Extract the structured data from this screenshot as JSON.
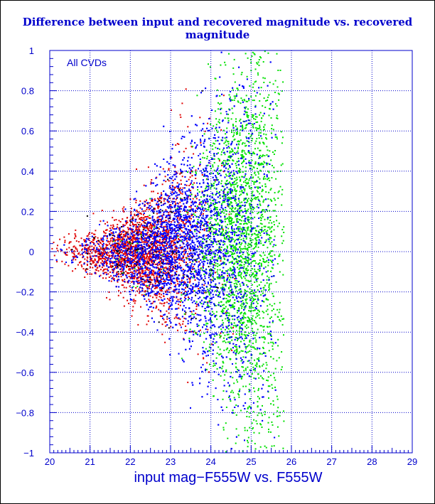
{
  "chart_data": {
    "type": "scatter",
    "title": "Difference between input and recovered magnitude vs. recovered magnitude",
    "xlabel": "input mag−F555W vs. F555W",
    "ylabel": "",
    "annotation": "All CVDs",
    "xlim": [
      20,
      29
    ],
    "ylim": [
      -1,
      1
    ],
    "x_ticks": [
      "20",
      "21",
      "22",
      "23",
      "24",
      "25",
      "26",
      "27",
      "28",
      "29"
    ],
    "y_ticks": [
      "−1",
      "−0.8",
      "−0.6",
      "−0.4",
      "−0.2",
      "0",
      "0.2",
      "0.4",
      "0.6",
      "0.8",
      "1"
    ],
    "grid": true,
    "series": [
      {
        "color": "#e00000",
        "x_range": [
          20,
          24.9
        ],
        "center": 22.3,
        "spread": 1.0,
        "count": 2200
      },
      {
        "color": "#00e000",
        "x_range": [
          21.5,
          25.8
        ],
        "center": 24.8,
        "spread": 0.7,
        "count": 2400
      },
      {
        "color": "#0000ff",
        "x_range": [
          20,
          25.6
        ],
        "center": 23.4,
        "spread": 1.3,
        "count": 5200
      },
      {
        "color": "#000000",
        "x_range": [
          20,
          24.5
        ],
        "center": 22.5,
        "spread": 1.0,
        "count": 120
      }
    ],
    "colors": {
      "axis": "#0000cc",
      "grid": "#0000cc",
      "title": "#0000cc"
    }
  }
}
